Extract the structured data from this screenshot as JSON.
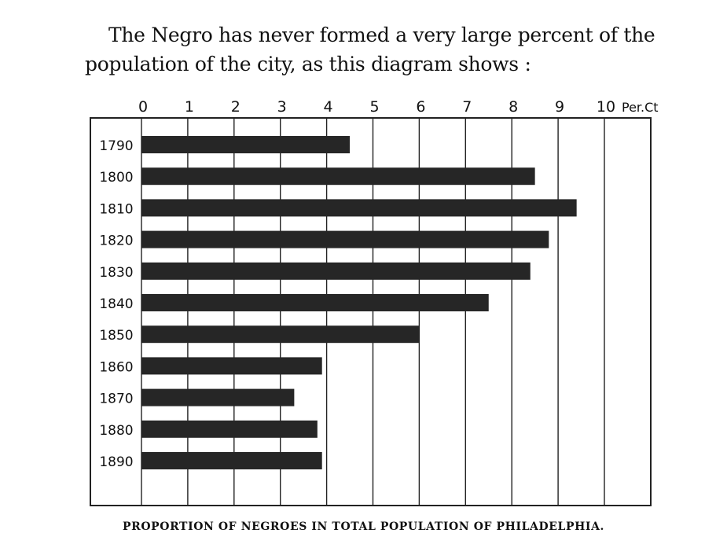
{
  "intro_text": {
    "line1": "The Negro has never formed a very large percent of the",
    "line2": "population of the city, as this diagram shows :"
  },
  "chart_data": {
    "type": "bar",
    "orientation": "horizontal",
    "categories": [
      "1790",
      "1800",
      "1810",
      "1820",
      "1830",
      "1840",
      "1850",
      "1860",
      "1870",
      "1880",
      "1890"
    ],
    "values": [
      4.5,
      8.5,
      9.4,
      8.8,
      8.4,
      7.5,
      6.0,
      3.9,
      3.3,
      3.8,
      3.9
    ],
    "x_ticks": [
      "0",
      "1",
      "2",
      "3",
      "4",
      "5",
      "6",
      "7",
      "8",
      "9",
      "10"
    ],
    "x_unit_label": "Per.Ct",
    "xlim": [
      0,
      11
    ],
    "title": "PROPORTION OF NEGROES IN TOTAL POPULATION OF PHILADELPHIA.",
    "grid": "vertical",
    "colors": {
      "bar": "#262626",
      "grid": "#222222",
      "text": "#111111"
    }
  }
}
